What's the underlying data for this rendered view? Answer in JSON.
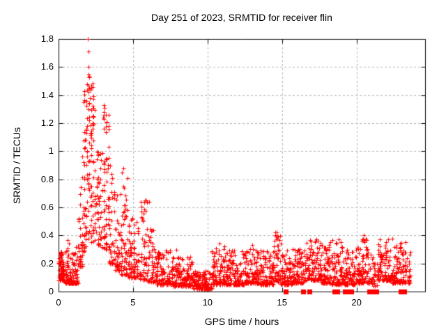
{
  "title": "Day 251 of 2023, SRMTID for receiver flin",
  "axes": {
    "x": {
      "label": "GPS time / hours",
      "tick_labels": [
        "0",
        "5",
        "10",
        "15",
        "20"
      ],
      "tick_values": [
        0,
        5,
        10,
        15,
        20
      ],
      "range": [
        0,
        24.6
      ]
    },
    "y": {
      "label": "SRMTID / TECUs",
      "tick_labels": [
        "0",
        "0.2",
        "0.4",
        "0.6",
        "0.8",
        "1",
        "1.2",
        "1.4",
        "1.6",
        "1.8"
      ],
      "tick_values": [
        0,
        0.2,
        0.4,
        0.6,
        0.8,
        1,
        1.2,
        1.4,
        1.6,
        1.8
      ],
      "range": [
        0,
        1.8
      ]
    }
  },
  "colors": {
    "marker": "#ff0000",
    "grid": "#b4b4b4",
    "axis": "#000000",
    "background": "#ffffff",
    "text": "#000000"
  },
  "chart_data": {
    "type": "scatter",
    "title": "Day 251 of 2023, SRMTID for receiver flin",
    "xlabel": "GPS time / hours",
    "ylabel": "SRMTID / TECUs",
    "xlim": [
      0,
      24.6
    ],
    "ylim": [
      0,
      1.8
    ],
    "grid": true,
    "legend": "none",
    "marker": "plus",
    "marker_color": "#ff0000",
    "peak": {
      "t": 2.0,
      "y": 1.8
    },
    "notable_points": [
      [
        1.97,
        1.8
      ],
      [
        2.02,
        1.71
      ],
      [
        1.99,
        1.6
      ],
      [
        1.94,
        1.48
      ],
      [
        2.03,
        1.47
      ],
      [
        2.08,
        1.45
      ],
      [
        1.9,
        1.44
      ],
      [
        2.12,
        1.38
      ],
      [
        1.86,
        1.36
      ],
      [
        2.0,
        1.3
      ],
      [
        2.05,
        1.22
      ],
      [
        1.92,
        1.18
      ],
      [
        3.02,
        1.33
      ],
      [
        3.1,
        1.31
      ],
      [
        3.06,
        1.28
      ],
      [
        3.18,
        1.26
      ],
      [
        2.98,
        1.24
      ],
      [
        3.22,
        1.21
      ],
      [
        4.35,
        0.88
      ],
      [
        5.9,
        0.65
      ],
      [
        6.1,
        0.64
      ],
      [
        7.9,
        0.3
      ],
      [
        10.8,
        0.34
      ],
      [
        13.0,
        0.33
      ],
      [
        14.55,
        0.42
      ],
      [
        14.6,
        0.39
      ],
      [
        14.5,
        0.36
      ],
      [
        17.4,
        0.36
      ],
      [
        18.8,
        0.37
      ],
      [
        20.5,
        0.4
      ],
      [
        20.55,
        0.35
      ],
      [
        23.3,
        0.35
      ]
    ],
    "zero_value_times": [
      15.25,
      16.4,
      16.84,
      18.52,
      18.7,
      19.22,
      19.45,
      19.64,
      20.86,
      21.09,
      21.33,
      22.95,
      23.18
    ],
    "density_bands_format": [
      "t_start",
      "t_end",
      "n_points",
      "y_min",
      "y_max",
      "skew_exponent",
      "t_quantize_step"
    ],
    "density_bands": [
      [
        0.0,
        0.35,
        70,
        0.08,
        0.3,
        2.0,
        0
      ],
      [
        0.35,
        1.3,
        115,
        0.06,
        0.37,
        2.6,
        0
      ],
      [
        1.3,
        1.6,
        35,
        0.18,
        0.8,
        1.8,
        0.07
      ],
      [
        1.6,
        1.8,
        35,
        0.28,
        1.45,
        1.7,
        0.07
      ],
      [
        1.8,
        2.45,
        100,
        0.35,
        1.55,
        1.4,
        0.07
      ],
      [
        2.45,
        2.95,
        50,
        0.33,
        1.0,
        1.6,
        0.07
      ],
      [
        2.95,
        3.4,
        60,
        0.3,
        1.3,
        1.5,
        0.07
      ],
      [
        3.4,
        3.8,
        45,
        0.2,
        0.95,
        1.9,
        0.07
      ],
      [
        3.8,
        4.2,
        45,
        0.15,
        0.7,
        2.0,
        0.07
      ],
      [
        4.2,
        4.6,
        50,
        0.12,
        0.85,
        1.9,
        0.07
      ],
      [
        4.6,
        5.0,
        45,
        0.1,
        0.6,
        2.0,
        0.07
      ],
      [
        5.0,
        5.45,
        45,
        0.1,
        0.5,
        2.2,
        0.05
      ],
      [
        5.45,
        5.95,
        45,
        0.08,
        0.65,
        2.0,
        0.05
      ],
      [
        5.95,
        6.5,
        50,
        0.07,
        0.45,
        2.2,
        0.05
      ],
      [
        6.5,
        7.5,
        110,
        0.05,
        0.3,
        2.3,
        0
      ],
      [
        7.5,
        9.0,
        160,
        0.04,
        0.26,
        2.5,
        0
      ],
      [
        9.0,
        10.3,
        130,
        0.02,
        0.15,
        2.2,
        0
      ],
      [
        10.3,
        11.2,
        100,
        0.05,
        0.33,
        2.5,
        0
      ],
      [
        11.2,
        12.5,
        140,
        0.05,
        0.3,
        2.5,
        0
      ],
      [
        12.5,
        13.5,
        115,
        0.06,
        0.33,
        2.5,
        0
      ],
      [
        13.5,
        14.4,
        100,
        0.05,
        0.3,
        2.5,
        0
      ],
      [
        14.4,
        14.9,
        50,
        0.07,
        0.43,
        1.9,
        0
      ],
      [
        14.9,
        15.7,
        85,
        0.05,
        0.3,
        2.5,
        0
      ],
      [
        15.7,
        16.6,
        90,
        0.06,
        0.33,
        2.5,
        0
      ],
      [
        16.6,
        17.6,
        100,
        0.08,
        0.38,
        2.3,
        0
      ],
      [
        17.6,
        18.3,
        75,
        0.06,
        0.35,
        2.3,
        0
      ],
      [
        18.3,
        19.1,
        85,
        0.05,
        0.37,
        2.3,
        0
      ],
      [
        19.1,
        19.9,
        85,
        0.05,
        0.3,
        2.4,
        0
      ],
      [
        19.9,
        20.8,
        90,
        0.06,
        0.38,
        2.3,
        0
      ],
      [
        20.8,
        21.4,
        35,
        0.04,
        0.3,
        2.4,
        0
      ],
      [
        21.4,
        22.4,
        110,
        0.08,
        0.38,
        2.2,
        0
      ],
      [
        22.4,
        23.6,
        115,
        0.06,
        0.35,
        2.2,
        0
      ]
    ],
    "seed": 12345
  }
}
